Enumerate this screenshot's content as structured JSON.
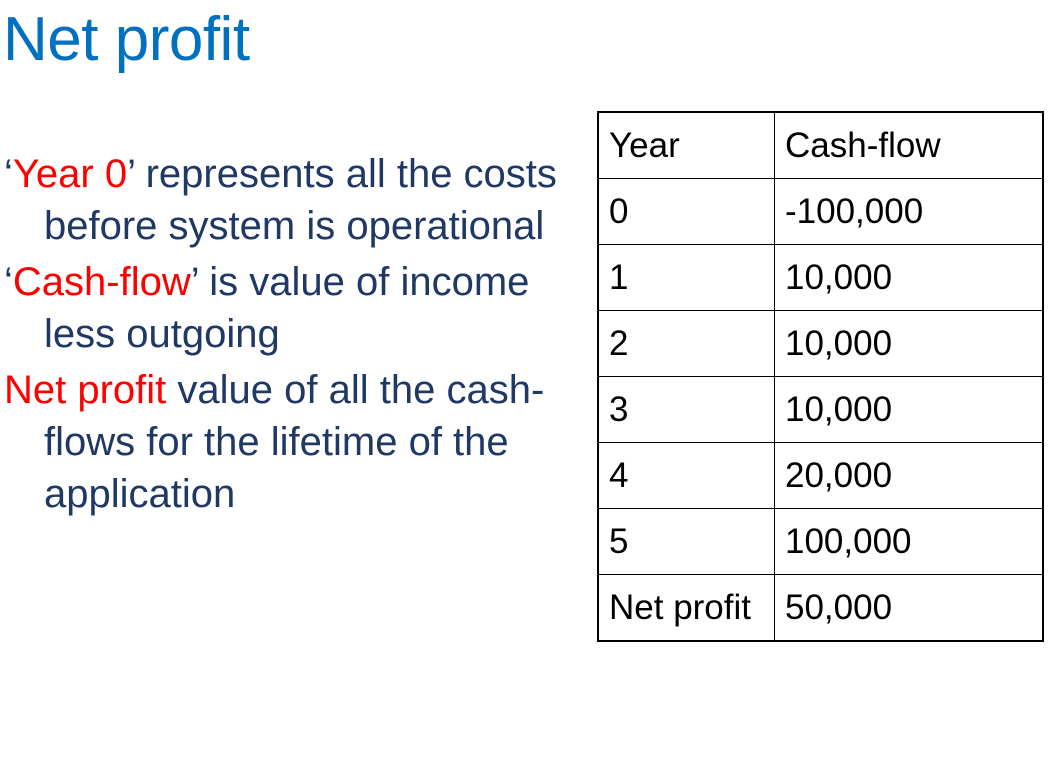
{
  "slide": {
    "title": "Net profit"
  },
  "bullets": [
    {
      "quote_open": "‘",
      "highlight": "Year 0",
      "quote_close": "’",
      "text": " represents all the costs before system is operational"
    },
    {
      "quote_open": "‘",
      "highlight": "Cash-flow",
      "quote_close": "’",
      "text": " is value of income less outgoing"
    },
    {
      "quote_open": "",
      "highlight": "Net profit",
      "quote_close": "",
      "text": " value of all the cash-flows for the lifetime of the application"
    }
  ],
  "table": {
    "headers": [
      "Year",
      "Cash-flow"
    ],
    "rows": [
      [
        "0",
        "-100,000"
      ],
      [
        "1",
        "10,000"
      ],
      [
        "2",
        "10,000"
      ],
      [
        "3",
        "10,000"
      ],
      [
        "4",
        "20,000"
      ],
      [
        "5",
        "100,000"
      ],
      [
        "Net profit",
        "50,000"
      ]
    ]
  },
  "colors": {
    "title": "#0070c0",
    "body_text": "#1f3864",
    "highlight": "#ff0000",
    "table_text": "#000000"
  }
}
